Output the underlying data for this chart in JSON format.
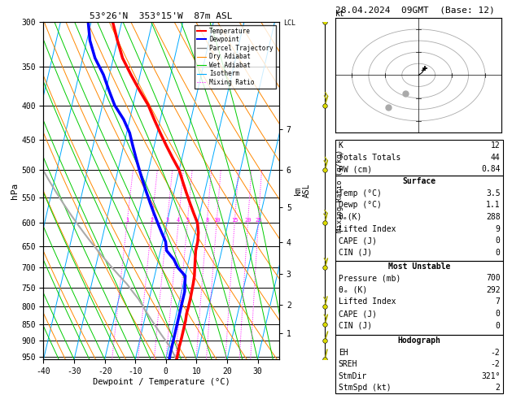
{
  "title_left": "53°26'N  353°15'W  87m ASL",
  "title_right": "28.04.2024  09GMT  (Base: 12)",
  "xlabel": "Dewpoint / Temperature (°C)",
  "ylabel_left": "hPa",
  "pressure_levels": [
    300,
    350,
    400,
    450,
    500,
    550,
    600,
    650,
    700,
    750,
    800,
    850,
    900,
    950
  ],
  "pressure_min": 300,
  "pressure_max": 960,
  "temp_min": -40,
  "temp_max": 35,
  "skew_factor": 22,
  "isotherm_color": "#00aaff",
  "dry_adiabat_color": "#ff8800",
  "wet_adiabat_color": "#00cc00",
  "mixing_ratio_color": "#ff00ff",
  "mixing_ratio_values": [
    1,
    2,
    3,
    4,
    5,
    8,
    10,
    15,
    20,
    25
  ],
  "temperature_profile": {
    "pressure": [
      300,
      320,
      340,
      360,
      380,
      400,
      420,
      440,
      460,
      480,
      500,
      520,
      540,
      560,
      580,
      600,
      620,
      640,
      660,
      680,
      700,
      720,
      740,
      760,
      780,
      800,
      820,
      840,
      860,
      880,
      900,
      920,
      940,
      960
    ],
    "temp": [
      -43,
      -40,
      -37,
      -33,
      -29,
      -25,
      -22,
      -19,
      -16,
      -13,
      -10,
      -8,
      -6,
      -4,
      -2,
      0,
      1,
      1.5,
      1.5,
      2,
      2.5,
      3,
      3.2,
      3.3,
      3.4,
      3.4,
      3.3,
      3.5,
      3.5,
      3.5,
      3.5,
      3.4,
      3.5,
      3.5
    ],
    "color": "#ff0000",
    "linewidth": 2.5
  },
  "dewpoint_profile": {
    "pressure": [
      300,
      320,
      340,
      360,
      380,
      400,
      420,
      440,
      460,
      480,
      500,
      520,
      540,
      560,
      580,
      600,
      620,
      640,
      660,
      680,
      700,
      720,
      740,
      760,
      780,
      800,
      820,
      840,
      860,
      880,
      900,
      920,
      940,
      960
    ],
    "temp": [
      -51,
      -49,
      -46,
      -42,
      -39,
      -36,
      -32,
      -29,
      -27,
      -25,
      -23,
      -21,
      -19,
      -17,
      -15,
      -13,
      -11,
      -9,
      -8,
      -5,
      -3,
      0,
      0.5,
      1.0,
      1.0,
      1.0,
      1.0,
      1.0,
      1.0,
      1.0,
      1.0,
      1.0,
      1.0,
      1.1
    ],
    "color": "#0000ff",
    "linewidth": 2.5
  },
  "parcel_profile": {
    "pressure": [
      960,
      940,
      920,
      900,
      880,
      860,
      840,
      820,
      800,
      780,
      760,
      740,
      720,
      700,
      680,
      660,
      640,
      620,
      600,
      580,
      560,
      540,
      520,
      500,
      480,
      460,
      440,
      420,
      400,
      380,
      360,
      340,
      320,
      300
    ],
    "temp": [
      3.5,
      2.0,
      0.5,
      -1.5,
      -3.5,
      -5.5,
      -7.5,
      -9.5,
      -11.5,
      -13.5,
      -16.0,
      -18.5,
      -21.5,
      -24.5,
      -27.5,
      -30.5,
      -33.5,
      -36.5,
      -39.5,
      -42.5,
      -45.5,
      -48.5,
      -51.5,
      -54.5,
      -57.5,
      -60.5,
      -63.5,
      -66.5,
      -69.0,
      -71.5,
      -73.5,
      -75.5,
      -77.0,
      -79.0
    ],
    "color": "#aaaaaa",
    "linewidth": 1.5
  },
  "wind_barbs_pressure": [
    960,
    900,
    850,
    800,
    700,
    600,
    500,
    400,
    300
  ],
  "wind_barbs_u": [
    -1,
    -2,
    -3,
    -3,
    -5,
    -5,
    -7,
    -8,
    -10
  ],
  "wind_barbs_v": [
    2,
    3,
    5,
    6,
    8,
    10,
    12,
    12,
    10
  ],
  "lcl_pressure": 955,
  "km_ticks": [
    1,
    2,
    3,
    4,
    5,
    6,
    7
  ],
  "km_pressures": [
    878,
    795,
    716,
    641,
    569,
    500,
    434
  ],
  "stats": {
    "K": 12,
    "Totals_Totals": 44,
    "PW_cm": 0.84,
    "Surface_Temp": 3.5,
    "Surface_Dewp": 1.1,
    "Surface_Theta_e": 288,
    "Lifted_Index": 9,
    "CAPE": 0,
    "CIN": 0,
    "MU_Pressure": 700,
    "MU_Theta_e": 292,
    "MU_LI": 7,
    "MU_CAPE": 0,
    "MU_CIN": 0,
    "EH": -2,
    "SREH": -2,
    "StmDir": 321,
    "StmSpd": 2
  }
}
